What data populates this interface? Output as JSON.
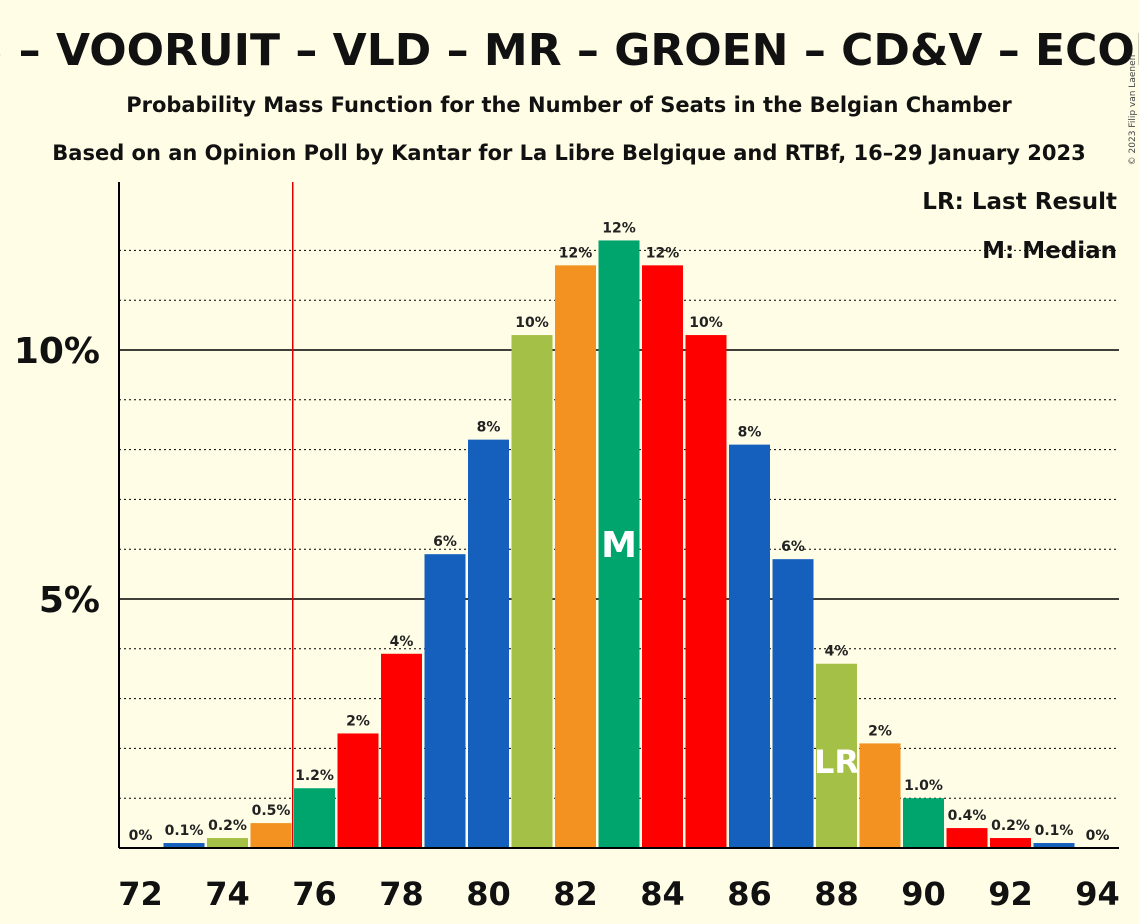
{
  "chart_data": {
    "type": "bar",
    "title": "PS – VOORUIT – VLD – MR – GROEN – CD&V – ECOLO",
    "subtitle": "Probability Mass Function for the Number of Seats in the Belgian Chamber",
    "subtitle2": "Based on an Opinion Poll by Kantar for La Libre Belgique and RTBf, 16–29 January 2023",
    "copyright": "© 2023 Filip van Laenen",
    "legend": {
      "lr": "LR: Last Result",
      "median": "M: Median",
      "position": "top-right"
    },
    "xlabel": "",
    "ylabel": "",
    "ylim": [
      0,
      13.3
    ],
    "y_major_ticks": [
      {
        "value": 5,
        "label": "5%"
      },
      {
        "value": 10,
        "label": "10%"
      }
    ],
    "y_minor_ticks": [
      1,
      2,
      3,
      4,
      6,
      7,
      8,
      9,
      11,
      12
    ],
    "x_tick_labels": [
      "72",
      "74",
      "76",
      "78",
      "80",
      "82",
      "84",
      "86",
      "88",
      "90",
      "92",
      "94"
    ],
    "last_result_seat": 75.5,
    "median_seat": 83,
    "median_marker": "M",
    "last_result_marker": "LR",
    "last_result_bar": 88,
    "seats": [
      72,
      73,
      74,
      75,
      76,
      77,
      78,
      79,
      80,
      81,
      82,
      83,
      84,
      85,
      86,
      87,
      88,
      89,
      90,
      91,
      92,
      93,
      94
    ],
    "values": [
      0,
      0.1,
      0.2,
      0.5,
      1.2,
      2.3,
      3.9,
      5.9,
      8.2,
      10.3,
      11.7,
      12.2,
      11.7,
      10.3,
      8.1,
      5.8,
      3.7,
      2.1,
      1.0,
      0.4,
      0.2,
      0.1,
      0
    ],
    "labels": [
      "0%",
      "0.1%",
      "0.2%",
      "0.5%",
      "1.2%",
      "2%",
      "4%",
      "6%",
      "8%",
      "10%",
      "12%",
      "12%",
      "12%",
      "10%",
      "8%",
      "6%",
      "4%",
      "2%",
      "1.0%",
      "0.4%",
      "0.2%",
      "0.1%",
      "0%"
    ],
    "colors": [
      "#ff0000",
      "#1560bd",
      "#a5c046",
      "#f39121",
      "#00a56d",
      "#ff0000",
      "#ff0000",
      "#1560bd",
      "#1560bd",
      "#a5c046",
      "#f39121",
      "#00a56d",
      "#ff0000",
      "#ff0000",
      "#1560bd",
      "#1560bd",
      "#a5c046",
      "#f39121",
      "#00a56d",
      "#ff0000",
      "#ff0000",
      "#1560bd",
      "#1560bd"
    ]
  }
}
